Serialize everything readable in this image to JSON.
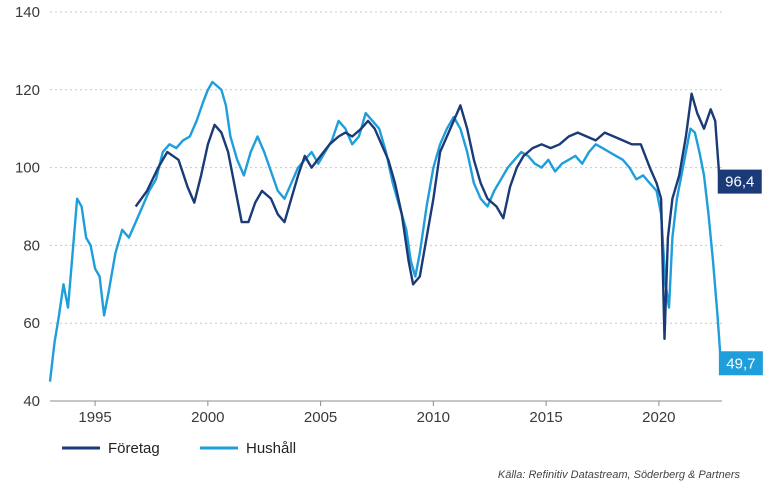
{
  "chart_data": {
    "type": "line",
    "title": "",
    "xlabel": "",
    "ylabel": "",
    "xlim": [
      1993.0,
      2022.8
    ],
    "ylim": [
      40,
      140
    ],
    "yticks": [
      "40",
      "60",
      "80",
      "100",
      "120",
      "140"
    ],
    "xticks": [
      "1995",
      "2000",
      "2005",
      "2010",
      "2015",
      "2020"
    ],
    "grid": "horizontal dotted",
    "legend_position": "bottom-left",
    "source": "Källa: Refinitiv Datastream, Söderberg & Partners",
    "series": [
      {
        "name": "Företag",
        "color": "#1a3a78",
        "end_label": "96,4",
        "x": [
          1996.8,
          1997.3,
          1997.8,
          1998.2,
          1998.7,
          1999.1,
          1999.4,
          1999.7,
          2000.0,
          2000.3,
          2000.6,
          2000.9,
          2001.2,
          2001.5,
          2001.8,
          2002.1,
          2002.4,
          2002.8,
          2003.1,
          2003.4,
          2003.7,
          2004.0,
          2004.3,
          2004.6,
          2005.0,
          2005.4,
          2005.8,
          2006.1,
          2006.4,
          2006.8,
          2007.1,
          2007.4,
          2007.7,
          2008.0,
          2008.3,
          2008.6,
          2008.9,
          2009.1,
          2009.4,
          2009.7,
          2010.0,
          2010.3,
          2010.6,
          2010.9,
          2011.2,
          2011.5,
          2011.8,
          2012.1,
          2012.4,
          2012.8,
          2013.1,
          2013.4,
          2013.7,
          2014.0,
          2014.4,
          2014.8,
          2015.2,
          2015.6,
          2016.0,
          2016.4,
          2016.8,
          2017.2,
          2017.6,
          2018.0,
          2018.4,
          2018.8,
          2019.2,
          2019.6,
          2019.9,
          2020.1,
          2020.25,
          2020.4,
          2020.6,
          2020.9,
          2021.2,
          2021.45,
          2021.7,
          2022.0,
          2022.3,
          2022.5,
          2022.7
        ],
        "y": [
          90,
          94,
          100,
          104,
          102,
          95,
          91,
          98,
          106,
          111,
          109,
          104,
          95,
          86,
          86,
          91,
          94,
          92,
          88,
          86,
          92,
          98,
          103,
          100,
          103,
          106,
          108,
          109,
          108,
          110,
          112,
          110,
          106,
          102,
          96,
          88,
          76,
          70,
          72,
          82,
          92,
          104,
          108,
          112,
          116,
          110,
          102,
          96,
          92,
          90,
          87,
          95,
          100,
          103,
          105,
          106,
          105,
          106,
          108,
          109,
          108,
          107,
          109,
          108,
          107,
          106,
          106,
          100,
          96,
          92,
          56,
          82,
          92,
          98,
          108,
          119,
          114,
          110,
          115,
          112,
          96.4
        ]
      },
      {
        "name": "Hushåll",
        "color": "#1e9edb",
        "end_label": "49,7",
        "x": [
          1993.0,
          1993.2,
          1993.4,
          1993.6,
          1993.8,
          1994.0,
          1994.2,
          1994.4,
          1994.6,
          1994.8,
          1995.0,
          1995.2,
          1995.4,
          1995.6,
          1995.9,
          1996.2,
          1996.5,
          1996.8,
          1997.1,
          1997.4,
          1997.7,
          1998.0,
          1998.3,
          1998.6,
          1998.9,
          1999.2,
          1999.5,
          1999.8,
          2000.0,
          2000.2,
          2000.4,
          2000.6,
          2000.8,
          2001.0,
          2001.3,
          2001.6,
          2001.9,
          2002.2,
          2002.5,
          2002.8,
          2003.1,
          2003.4,
          2003.7,
          2004.0,
          2004.3,
          2004.6,
          2004.9,
          2005.2,
          2005.5,
          2005.8,
          2006.1,
          2006.4,
          2006.7,
          2007.0,
          2007.3,
          2007.6,
          2007.9,
          2008.2,
          2008.5,
          2008.8,
          2009.0,
          2009.2,
          2009.4,
          2009.7,
          2010.0,
          2010.3,
          2010.6,
          2010.9,
          2011.2,
          2011.5,
          2011.8,
          2012.1,
          2012.4,
          2012.7,
          2013.0,
          2013.3,
          2013.6,
          2013.9,
          2014.2,
          2014.5,
          2014.8,
          2015.1,
          2015.4,
          2015.7,
          2016.0,
          2016.3,
          2016.6,
          2016.9,
          2017.2,
          2017.5,
          2017.8,
          2018.1,
          2018.4,
          2018.7,
          2019.0,
          2019.3,
          2019.6,
          2019.9,
          2020.1,
          2020.3,
          2020.45,
          2020.6,
          2020.8,
          2021.0,
          2021.2,
          2021.4,
          2021.6,
          2021.8,
          2022.0,
          2022.2,
          2022.4,
          2022.6,
          2022.75
        ],
        "y": [
          45,
          55,
          62,
          70,
          64,
          78,
          92,
          90,
          82,
          80,
          74,
          72,
          62,
          68,
          78,
          84,
          82,
          86,
          90,
          94,
          97,
          104,
          106,
          105,
          107,
          108,
          112,
          117,
          120,
          122,
          121,
          120,
          116,
          108,
          102,
          98,
          104,
          108,
          104,
          99,
          94,
          92,
          96,
          100,
          102,
          104,
          101,
          104,
          107,
          112,
          110,
          106,
          108,
          114,
          112,
          110,
          104,
          96,
          90,
          84,
          76,
          72,
          78,
          90,
          100,
          106,
          110,
          113,
          110,
          104,
          96,
          92,
          90,
          94,
          97,
          100,
          102,
          104,
          103,
          101,
          100,
          102,
          99,
          101,
          102,
          103,
          101,
          104,
          106,
          105,
          104,
          103,
          102,
          100,
          97,
          98,
          96,
          94,
          88,
          70,
          64,
          82,
          92,
          98,
          104,
          110,
          109,
          104,
          98,
          88,
          76,
          62,
          49.7
        ]
      }
    ]
  }
}
